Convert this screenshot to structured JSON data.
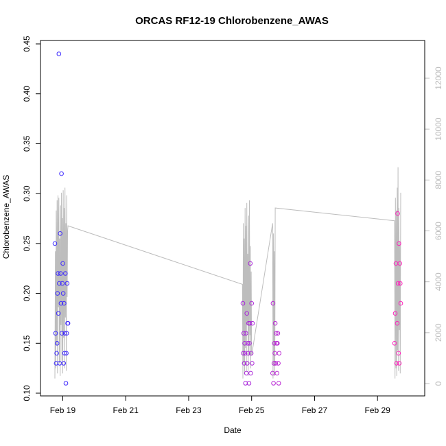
{
  "chart_data": {
    "type": "scatter",
    "title": "ORCAS RF12-19 Chlorobenzene_AWAS",
    "xlabel": "Date",
    "ylabel": "Chlorobenzene_AWAS",
    "xlim": [
      "2016-02-18 07:00",
      "2016-03-01 12:00"
    ],
    "ylim": [
      0.1,
      0.45
    ],
    "y2lim": [
      0,
      12000
    ],
    "x_ticks": [
      {
        "date": "2016-02-19",
        "label": "Feb 19"
      },
      {
        "date": "2016-02-21",
        "label": "Feb 21"
      },
      {
        "date": "2016-02-23",
        "label": "Feb 23"
      },
      {
        "date": "2016-02-25",
        "label": "Feb 25"
      },
      {
        "date": "2016-02-27",
        "label": "Feb 27"
      },
      {
        "date": "2016-02-29",
        "label": "Feb 29"
      }
    ],
    "y_ticks": [
      "0.10",
      "0.15",
      "0.20",
      "0.25",
      "0.30",
      "0.35",
      "0.40",
      "0.45"
    ],
    "y2_ticks": [
      "0",
      "2000",
      "4000",
      "6000",
      "8000",
      "10000",
      "12000"
    ],
    "grid": false,
    "legend": "none",
    "series": [
      {
        "kind": "points",
        "color_start": "#3b2bff",
        "color_end": "#ff22bb",
        "points": [
          [
            "2016-02-18 18:00",
            0.25
          ],
          [
            "2016-02-18 18:30",
            0.16
          ],
          [
            "2016-02-18 19:00",
            0.13
          ],
          [
            "2016-02-18 19:20",
            0.14
          ],
          [
            "2016-02-18 19:40",
            0.15
          ],
          [
            "2016-02-18 20:00",
            0.2
          ],
          [
            "2016-02-18 20:20",
            0.22
          ],
          [
            "2016-02-18 20:40",
            0.18
          ],
          [
            "2016-02-18 21:00",
            0.44
          ],
          [
            "2016-02-18 21:20",
            0.21
          ],
          [
            "2016-02-18 21:40",
            0.13
          ],
          [
            "2016-02-18 22:00",
            0.26
          ],
          [
            "2016-02-18 22:20",
            0.22
          ],
          [
            "2016-02-18 22:40",
            0.19
          ],
          [
            "2016-02-18 23:00",
            0.32
          ],
          [
            "2016-02-18 23:20",
            0.16
          ],
          [
            "2016-02-18 23:40",
            0.21
          ],
          [
            "2016-02-19 00:00",
            0.23
          ],
          [
            "2016-02-19 00:20",
            0.2
          ],
          [
            "2016-02-19 00:40",
            0.13
          ],
          [
            "2016-02-19 01:00",
            0.19
          ],
          [
            "2016-02-19 01:20",
            0.14
          ],
          [
            "2016-02-19 01:40",
            0.16
          ],
          [
            "2016-02-19 02:00",
            0.22
          ],
          [
            "2016-02-19 02:20",
            0.11
          ],
          [
            "2016-02-19 02:40",
            0.14
          ],
          [
            "2016-02-19 03:00",
            0.16
          ],
          [
            "2016-02-19 03:20",
            0.21
          ],
          [
            "2016-02-19 03:40",
            0.17
          ],
          [
            "2016-02-19 04:00",
            0.17
          ],
          [
            "2016-02-24 17:20",
            0.19
          ],
          [
            "2016-02-24 17:40",
            0.14
          ],
          [
            "2016-02-24 18:00",
            0.16
          ],
          [
            "2016-02-24 18:20",
            0.13
          ],
          [
            "2016-02-24 18:40",
            0.15
          ],
          [
            "2016-02-24 19:00",
            0.14
          ],
          [
            "2016-02-24 19:20",
            0.11
          ],
          [
            "2016-02-24 19:40",
            0.16
          ],
          [
            "2016-02-24 20:00",
            0.12
          ],
          [
            "2016-02-24 20:20",
            0.18
          ],
          [
            "2016-02-24 20:40",
            0.13
          ],
          [
            "2016-02-24 21:00",
            0.15
          ],
          [
            "2016-02-24 21:20",
            0.14
          ],
          [
            "2016-02-24 21:40",
            0.17
          ],
          [
            "2016-02-24 22:00",
            0.11
          ],
          [
            "2016-02-24 22:20",
            0.15
          ],
          [
            "2016-02-24 22:40",
            0.17
          ],
          [
            "2016-02-24 23:00",
            0.23
          ],
          [
            "2016-02-24 23:20",
            0.12
          ],
          [
            "2016-02-24 23:40",
            0.14
          ],
          [
            "2016-02-25 00:00",
            0.19
          ],
          [
            "2016-02-25 00:20",
            0.13
          ],
          [
            "2016-02-25 00:40",
            0.17
          ],
          [
            "2016-02-25 16:00",
            0.12
          ],
          [
            "2016-02-25 16:20",
            0.19
          ],
          [
            "2016-02-25 16:40",
            0.11
          ],
          [
            "2016-02-25 17:00",
            0.13
          ],
          [
            "2016-02-25 17:20",
            0.15
          ],
          [
            "2016-02-25 17:40",
            0.14
          ],
          [
            "2016-02-25 18:00",
            0.17
          ],
          [
            "2016-02-25 18:20",
            0.13
          ],
          [
            "2016-02-25 18:40",
            0.16
          ],
          [
            "2016-02-25 19:00",
            0.15
          ],
          [
            "2016-02-25 19:20",
            0.12
          ],
          [
            "2016-02-25 19:40",
            0.15
          ],
          [
            "2016-02-25 20:00",
            0.16
          ],
          [
            "2016-02-25 20:20",
            0.13
          ],
          [
            "2016-02-25 20:40",
            0.11
          ],
          [
            "2016-02-25 21:00",
            0.14
          ],
          [
            "2016-02-29 13:00",
            0.15
          ],
          [
            "2016-02-29 13:30",
            0.18
          ],
          [
            "2016-02-29 14:00",
            0.23
          ],
          [
            "2016-02-29 14:30",
            0.13
          ],
          [
            "2016-02-29 15:00",
            0.17
          ],
          [
            "2016-02-29 15:20",
            0.28
          ],
          [
            "2016-02-29 15:40",
            0.21
          ],
          [
            "2016-02-29 16:00",
            0.14
          ],
          [
            "2016-02-29 16:20",
            0.25
          ],
          [
            "2016-02-29 16:40",
            0.13
          ],
          [
            "2016-02-29 17:00",
            0.23
          ],
          [
            "2016-02-29 17:20",
            0.21
          ],
          [
            "2016-02-29 17:40",
            0.19
          ]
        ]
      },
      {
        "kind": "line",
        "axis": "right",
        "color": "#bdbdbd",
        "points": [
          [
            "2016-02-18 18:00",
            200
          ],
          [
            "2016-02-18 18:20",
            5200
          ],
          [
            "2016-02-18 18:40",
            600
          ],
          [
            "2016-02-18 19:00",
            6800
          ],
          [
            "2016-02-18 19:20",
            1500
          ],
          [
            "2016-02-18 19:40",
            7200
          ],
          [
            "2016-02-18 20:00",
            400
          ],
          [
            "2016-02-18 20:20",
            7400
          ],
          [
            "2016-02-18 20:40",
            3000
          ],
          [
            "2016-02-18 21:00",
            7300
          ],
          [
            "2016-02-18 21:20",
            800
          ],
          [
            "2016-02-18 21:40",
            5700
          ],
          [
            "2016-02-18 22:00",
            300
          ],
          [
            "2016-02-18 22:20",
            7000
          ],
          [
            "2016-02-18 22:40",
            2300
          ],
          [
            "2016-02-18 23:00",
            7500
          ],
          [
            "2016-02-18 23:20",
            900
          ],
          [
            "2016-02-18 23:40",
            6500
          ],
          [
            "2016-02-19 00:00",
            400
          ],
          [
            "2016-02-19 00:20",
            7600
          ],
          [
            "2016-02-19 00:40",
            1800
          ],
          [
            "2016-02-19 01:00",
            6900
          ],
          [
            "2016-02-19 01:20",
            600
          ],
          [
            "2016-02-19 01:40",
            7700
          ],
          [
            "2016-02-19 02:00",
            2600
          ],
          [
            "2016-02-19 02:20",
            6300
          ],
          [
            "2016-02-19 02:40",
            500
          ],
          [
            "2016-02-19 03:00",
            7400
          ],
          [
            "2016-02-19 03:20",
            3400
          ],
          [
            "2016-02-19 03:40",
            6000
          ],
          [
            "2016-02-19 04:00",
            6200
          ],
          [
            "2016-02-24 17:00",
            3900
          ],
          [
            "2016-02-24 17:20",
            200
          ],
          [
            "2016-02-24 17:40",
            6300
          ],
          [
            "2016-02-24 18:00",
            800
          ],
          [
            "2016-02-24 18:20",
            5700
          ],
          [
            "2016-02-24 18:40",
            400
          ],
          [
            "2016-02-24 19:00",
            6900
          ],
          [
            "2016-02-24 19:20",
            1400
          ],
          [
            "2016-02-24 19:40",
            6200
          ],
          [
            "2016-02-24 20:00",
            500
          ],
          [
            "2016-02-24 20:20",
            7100
          ],
          [
            "2016-02-24 20:40",
            2300
          ],
          [
            "2016-02-24 21:00",
            5100
          ],
          [
            "2016-02-24 21:20",
            300
          ],
          [
            "2016-02-24 21:40",
            6600
          ],
          [
            "2016-02-24 22:00",
            1100
          ],
          [
            "2016-02-24 22:20",
            7200
          ],
          [
            "2016-02-24 22:40",
            1900
          ],
          [
            "2016-02-24 23:00",
            5400
          ],
          [
            "2016-02-24 23:20",
            600
          ],
          [
            "2016-02-24 23:40",
            4400
          ],
          [
            "2016-02-25 00:00",
            1100
          ],
          [
            "2016-02-25 16:00",
            6300
          ],
          [
            "2016-02-25 16:20",
            200
          ],
          [
            "2016-02-25 16:40",
            5900
          ],
          [
            "2016-02-25 17:00",
            700
          ],
          [
            "2016-02-25 17:20",
            5200
          ],
          [
            "2016-02-25 17:40",
            300
          ],
          [
            "2016-02-25 18:00",
            6900
          ],
          [
            "2016-02-29 13:00",
            6400
          ],
          [
            "2016-02-29 13:20",
            200
          ],
          [
            "2016-02-29 13:40",
            7300
          ],
          [
            "2016-02-29 14:00",
            600
          ],
          [
            "2016-02-29 14:20",
            6800
          ],
          [
            "2016-02-29 14:40",
            300
          ],
          [
            "2016-02-29 15:00",
            7700
          ],
          [
            "2016-02-29 15:20",
            1300
          ],
          [
            "2016-02-29 15:40",
            8500
          ],
          [
            "2016-02-29 16:00",
            500
          ],
          [
            "2016-02-29 16:20",
            6900
          ],
          [
            "2016-02-29 16:40",
            2100
          ],
          [
            "2016-02-29 17:00",
            5600
          ],
          [
            "2016-02-29 17:20",
            400
          ],
          [
            "2016-02-29 17:40",
            7500
          ]
        ]
      }
    ]
  }
}
